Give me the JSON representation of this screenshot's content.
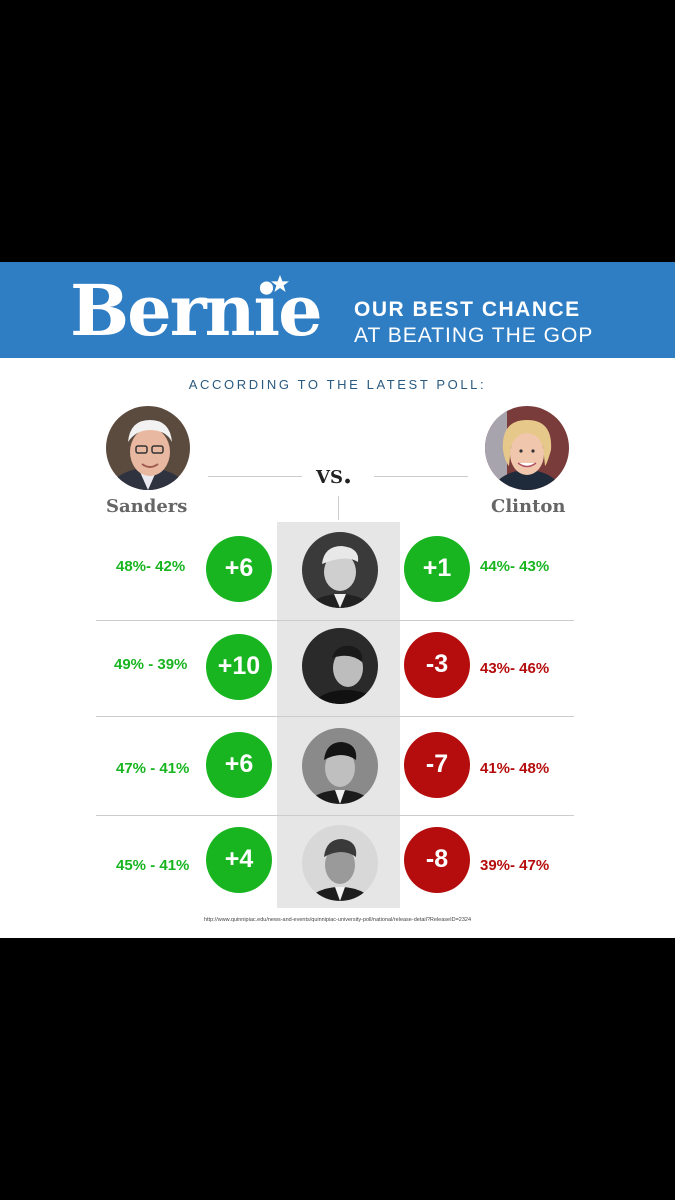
{
  "header": {
    "logo": "Bernie",
    "tagline_line1": "OUR BEST CHANCE",
    "tagline_line2": "AT BEATING THE GOP",
    "colors": {
      "banner": "#2f7ec4",
      "win": "#18b521",
      "loss": "#b50d0d"
    }
  },
  "subtitle": "ACCORDING TO THE LATEST POLL:",
  "vs": "VS.",
  "left_candidate": "Sanders",
  "right_candidate": "Clinton",
  "rows": [
    {
      "sanders_pct": "48%- 42%",
      "sanders_margin": "+6",
      "clinton_margin": "+1",
      "clinton_pct": "44%- 43%"
    },
    {
      "sanders_pct": "49% - 39%",
      "sanders_margin": "+10",
      "clinton_margin": "-3",
      "clinton_pct": "43%- 46%"
    },
    {
      "sanders_pct": "47% - 41%",
      "sanders_margin": "+6",
      "clinton_margin": "-7",
      "clinton_pct": "41%- 48%"
    },
    {
      "sanders_pct": "45% - 41%",
      "sanders_margin": "+4",
      "clinton_margin": "-8",
      "clinton_pct": "39%- 47%"
    }
  ],
  "source": "http://www.quinnipiac.edu/news-and-events/quinnipiac-university-poll/national/release-detail?ReleaseID=2324"
}
